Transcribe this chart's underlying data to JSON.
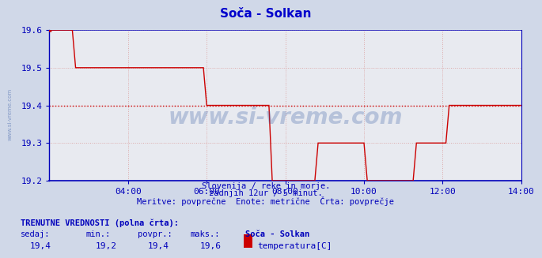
{
  "title": "Soča - Solkan",
  "bg_color": "#d0d8e8",
  "plot_bg_color": "#e8eaf0",
  "line_color": "#cc0000",
  "avg_line_color": "#cc0000",
  "grid_major_color": "#aaaacc",
  "grid_minor_color": "#ddaaaa",
  "axis_color": "#0000bb",
  "title_color": "#0000cc",
  "xlim": [
    0,
    144
  ],
  "ylim": [
    19.2,
    19.6
  ],
  "yticks": [
    19.2,
    19.3,
    19.4,
    19.5,
    19.6
  ],
  "xtick_positions": [
    24,
    48,
    72,
    96,
    120,
    144
  ],
  "xtick_labels": [
    "04:00",
    "06:00",
    "08:00",
    "10:00",
    "12:00",
    "14:00"
  ],
  "avg_value": 19.4,
  "subtitle1": "Slovenija / reke in morje.",
  "subtitle2": "zadnjih 12ur / 5 minut.",
  "subtitle3": "Meritve: povprečne  Enote: metrične  Črta: povprečje",
  "footer_label": "TRENUTNE VREDNOSTI (polna črta):",
  "footer_sedaj": "sedaj:",
  "footer_min": "min.:",
  "footer_povpr": "povpr.:",
  "footer_maks": "maks.:",
  "footer_station": "Soča - Solkan",
  "footer_type": "temperatura[C]",
  "val_sedaj": "19,4",
  "val_min": "19,2",
  "val_povpr": "19,4",
  "val_maks": "19,6",
  "watermark": "www.si-vreme.com",
  "left_label": "www.si-vreme.com",
  "data_x": [
    0,
    1,
    2,
    3,
    4,
    5,
    6,
    7,
    8,
    9,
    10,
    11,
    12,
    13,
    14,
    15,
    16,
    17,
    18,
    19,
    20,
    21,
    22,
    23,
    24,
    25,
    26,
    27,
    28,
    29,
    30,
    31,
    32,
    33,
    34,
    35,
    36,
    37,
    38,
    39,
    40,
    41,
    42,
    43,
    44,
    45,
    46,
    47,
    48,
    49,
    50,
    51,
    52,
    53,
    54,
    55,
    56,
    57,
    58,
    59,
    60,
    61,
    62,
    63,
    64,
    65,
    66,
    67,
    68,
    69,
    70,
    71,
    72,
    73,
    74,
    75,
    76,
    77,
    78,
    79,
    80,
    81,
    82,
    83,
    84,
    85,
    86,
    87,
    88,
    89,
    90,
    91,
    92,
    93,
    94,
    95,
    96,
    97,
    98,
    99,
    100,
    101,
    102,
    103,
    104,
    105,
    106,
    107,
    108,
    109,
    110,
    111,
    112,
    113,
    114,
    115,
    116,
    117,
    118,
    119,
    120,
    121,
    122,
    123,
    124,
    125,
    126,
    127,
    128,
    129,
    130,
    131,
    132,
    133,
    134,
    135,
    136,
    137,
    138,
    139,
    140,
    141,
    142,
    143,
    144
  ],
  "data_y": [
    19.6,
    19.6,
    19.6,
    19.6,
    19.6,
    19.6,
    19.6,
    19.6,
    19.5,
    19.5,
    19.5,
    19.5,
    19.5,
    19.5,
    19.5,
    19.5,
    19.5,
    19.5,
    19.5,
    19.5,
    19.5,
    19.5,
    19.5,
    19.5,
    19.5,
    19.5,
    19.5,
    19.5,
    19.5,
    19.5,
    19.5,
    19.5,
    19.5,
    19.5,
    19.5,
    19.5,
    19.5,
    19.5,
    19.5,
    19.5,
    19.5,
    19.5,
    19.5,
    19.5,
    19.5,
    19.5,
    19.5,
    19.5,
    19.4,
    19.4,
    19.4,
    19.4,
    19.4,
    19.4,
    19.4,
    19.4,
    19.4,
    19.4,
    19.4,
    19.4,
    19.4,
    19.4,
    19.4,
    19.4,
    19.4,
    19.4,
    19.4,
    19.4,
    19.2,
    19.2,
    19.2,
    19.2,
    19.2,
    19.2,
    19.2,
    19.2,
    19.2,
    19.2,
    19.2,
    19.2,
    19.2,
    19.2,
    19.3,
    19.3,
    19.3,
    19.3,
    19.3,
    19.3,
    19.3,
    19.3,
    19.3,
    19.3,
    19.3,
    19.3,
    19.3,
    19.3,
    19.3,
    19.2,
    19.2,
    19.2,
    19.2,
    19.2,
    19.2,
    19.2,
    19.2,
    19.2,
    19.2,
    19.2,
    19.2,
    19.2,
    19.2,
    19.2,
    19.3,
    19.3,
    19.3,
    19.3,
    19.3,
    19.3,
    19.3,
    19.3,
    19.3,
    19.3,
    19.4,
    19.4,
    19.4,
    19.4,
    19.4,
    19.4,
    19.4,
    19.4,
    19.4,
    19.4,
    19.4,
    19.4,
    19.4,
    19.4,
    19.4,
    19.4,
    19.4,
    19.4,
    19.4,
    19.4,
    19.4,
    19.4,
    19.4
  ]
}
